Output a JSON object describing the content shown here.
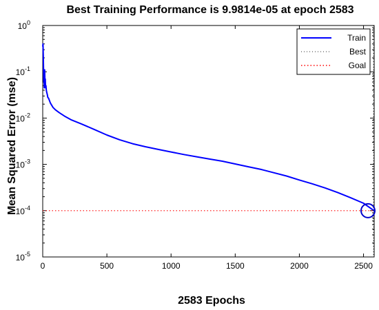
{
  "chart_data": {
    "type": "line",
    "title": "Best Training Performance is 9.9814e-05 at epoch 2583",
    "xlabel": "2583 Epochs",
    "ylabel": "Mean Squared Error  (mse)",
    "xlim": [
      0,
      2583
    ],
    "ylim": [
      1e-05,
      1
    ],
    "yscale": "log",
    "xticks": [
      0,
      500,
      1000,
      1500,
      2000,
      2500
    ],
    "yticks": [
      {
        "value": 1,
        "base": "10",
        "exp": "0"
      },
      {
        "value": 0.1,
        "base": "10",
        "exp": "-1"
      },
      {
        "value": 0.01,
        "base": "10",
        "exp": "-2"
      },
      {
        "value": 0.001,
        "base": "10",
        "exp": "-3"
      },
      {
        "value": 0.0001,
        "base": "10",
        "exp": "-4"
      },
      {
        "value": 1e-05,
        "base": "10",
        "exp": "-5"
      }
    ],
    "grid": false,
    "legend_position": "top-right",
    "series": [
      {
        "name": "Train",
        "color": "#0000ff",
        "style": "solid",
        "x": [
          0,
          2,
          5,
          8,
          10,
          12,
          15,
          18,
          20,
          22,
          25,
          28,
          32,
          36,
          40,
          45,
          50,
          60,
          70,
          80,
          100,
          130,
          170,
          220,
          300,
          400,
          500,
          600,
          700,
          800,
          900,
          1000,
          1100,
          1200,
          1300,
          1400,
          1500,
          1600,
          1700,
          1800,
          1900,
          2000,
          2100,
          2200,
          2300,
          2400,
          2500,
          2583
        ],
        "y": [
          0.35,
          0.4,
          0.2,
          0.06,
          0.08,
          0.045,
          0.11,
          0.05,
          0.07,
          0.045,
          0.05,
          0.04,
          0.035,
          0.032,
          0.028,
          0.027,
          0.025,
          0.021,
          0.019,
          0.017,
          0.015,
          0.013,
          0.011,
          0.0092,
          0.0075,
          0.0057,
          0.0043,
          0.0034,
          0.0028,
          0.0024,
          0.0021,
          0.00185,
          0.00163,
          0.00146,
          0.0013,
          0.00117,
          0.00102,
          0.00089,
          0.00078,
          0.00066,
          0.00056,
          0.00046,
          0.00038,
          0.00031,
          0.000245,
          0.00019,
          0.000145,
          9.9814e-05
        ]
      },
      {
        "name": "Best",
        "color": "#2a2a2a",
        "style": "dotted",
        "vertical_x": 2583
      },
      {
        "name": "Goal",
        "color": "#ff0000",
        "style": "dotted",
        "horizontal_y": 0.0001
      }
    ],
    "best_point": {
      "x": 2583,
      "y": 9.9814e-05
    }
  }
}
